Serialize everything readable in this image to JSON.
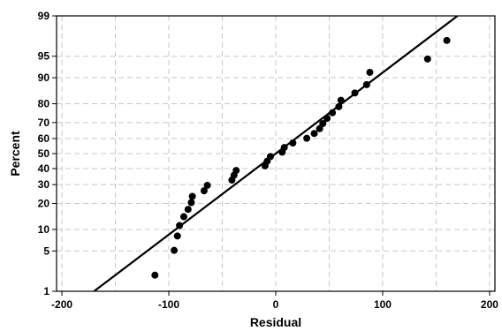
{
  "chart_data": {
    "type": "scatter",
    "title": "",
    "xlabel": "Residual",
    "ylabel": "Percent",
    "xlim": [
      -205,
      205
    ],
    "ylim": [
      1,
      99
    ],
    "y_scale": "normal-probability",
    "grid": true,
    "x_ticks": [
      -200,
      -100,
      0,
      100,
      200
    ],
    "x_tick_labels": [
      "-200",
      "-100",
      "0",
      "100",
      "200"
    ],
    "y_ticks": [
      1,
      5,
      10,
      20,
      30,
      40,
      50,
      60,
      70,
      80,
      90,
      95,
      99
    ],
    "y_tick_labels": [
      "1",
      "5",
      "10",
      "20",
      "30",
      "40",
      "50",
      "60",
      "70",
      "80",
      "90",
      "95",
      "99"
    ],
    "fit_line": {
      "x": [
        -170,
        170
      ],
      "y": [
        1.0,
        99.0
      ]
    },
    "points": [
      {
        "x": -113,
        "y": 2.0
      },
      {
        "x": -95,
        "y": 5.1
      },
      {
        "x": -92,
        "y": 8.2
      },
      {
        "x": -90,
        "y": 11.2
      },
      {
        "x": -86,
        "y": 14.3
      },
      {
        "x": -82,
        "y": 17.3
      },
      {
        "x": -79,
        "y": 20.4
      },
      {
        "x": -78,
        "y": 23.5
      },
      {
        "x": -67,
        "y": 26.5
      },
      {
        "x": -64,
        "y": 29.6
      },
      {
        "x": -41,
        "y": 32.7
      },
      {
        "x": -39,
        "y": 35.7
      },
      {
        "x": -37,
        "y": 38.8
      },
      {
        "x": -10,
        "y": 41.8
      },
      {
        "x": -8,
        "y": 44.9
      },
      {
        "x": -5,
        "y": 48.0
      },
      {
        "x": 6,
        "y": 51.0
      },
      {
        "x": 8,
        "y": 54.1
      },
      {
        "x": 16,
        "y": 57.1
      },
      {
        "x": 29,
        "y": 60.2
      },
      {
        "x": 36,
        "y": 63.3
      },
      {
        "x": 41,
        "y": 66.3
      },
      {
        "x": 44,
        "y": 69.4
      },
      {
        "x": 48,
        "y": 72.4
      },
      {
        "x": 53,
        "y": 75.5
      },
      {
        "x": 59,
        "y": 78.6
      },
      {
        "x": 61,
        "y": 81.6
      },
      {
        "x": 74,
        "y": 84.7
      },
      {
        "x": 85,
        "y": 87.8
      },
      {
        "x": 88,
        "y": 91.5
      },
      {
        "x": 142,
        "y": 94.5
      },
      {
        "x": 160,
        "y": 97.2
      }
    ]
  }
}
